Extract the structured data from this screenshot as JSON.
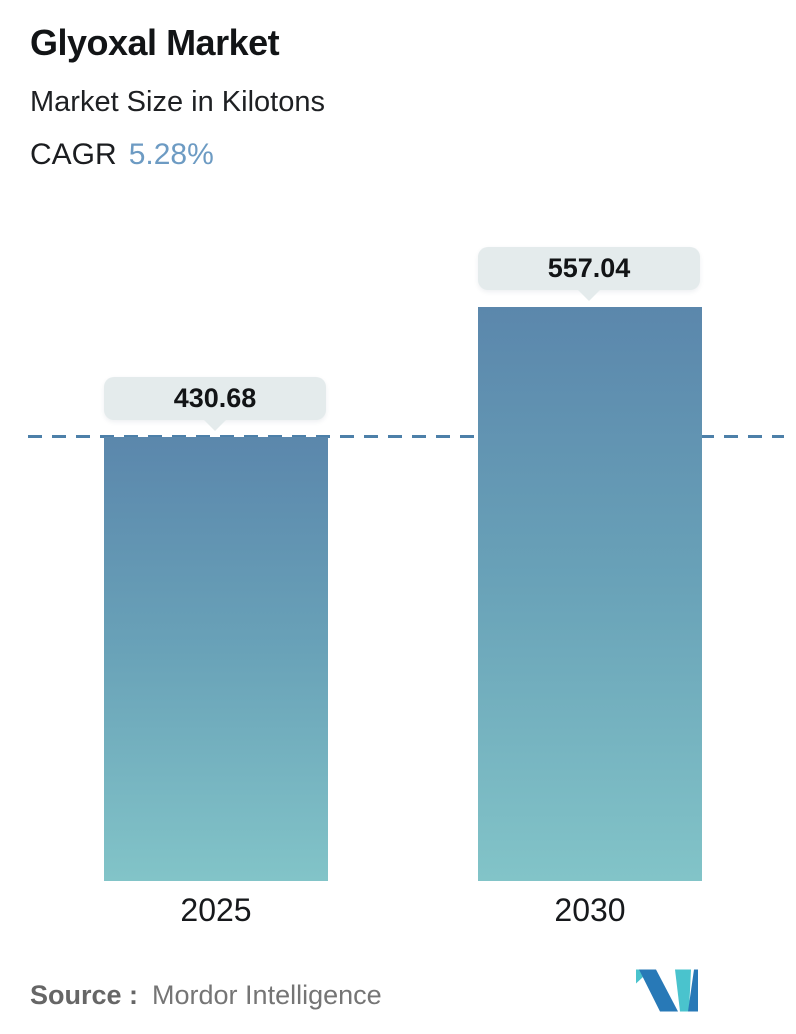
{
  "header": {
    "title": "Glyoxal Market",
    "subtitle": "Market Size in Kilotons",
    "cagr_label": "CAGR",
    "cagr_value": "5.28%"
  },
  "chart_data": {
    "type": "bar",
    "categories": [
      "2025",
      "2030"
    ],
    "values": [
      430.68,
      557.04
    ],
    "series": [
      {
        "name": "Market Size (Kilotons)",
        "values": [
          430.68,
          557.04
        ]
      }
    ],
    "title": "Glyoxal Market",
    "subtitle": "Market Size in Kilotons",
    "unit": "Kilotons",
    "cagr_percent": 5.28,
    "xlabel": "",
    "ylabel": "Market Size in Kilotons",
    "ylim": [
      0,
      600
    ],
    "grid": false,
    "legend": false,
    "reference_line": {
      "style": "dashed",
      "value": 430.68,
      "color": "#4d80a9"
    },
    "colors": {
      "bar_gradient_top": "#5b87ac",
      "bar_gradient_bottom": "#82c4c8",
      "value_bubble_bg": "#e4ebec",
      "value_text": "#121416"
    }
  },
  "footer": {
    "source_label": "Source :",
    "source_value": "Mordor Intelligence",
    "logo": "mordor-intelligence-logo"
  },
  "colors": {
    "cagr_accent": "#6d9bc3",
    "text_primary": "#121416",
    "source_text": "#757575",
    "logo_blue": "#2879b7",
    "logo_teal": "#4ac3cd"
  }
}
